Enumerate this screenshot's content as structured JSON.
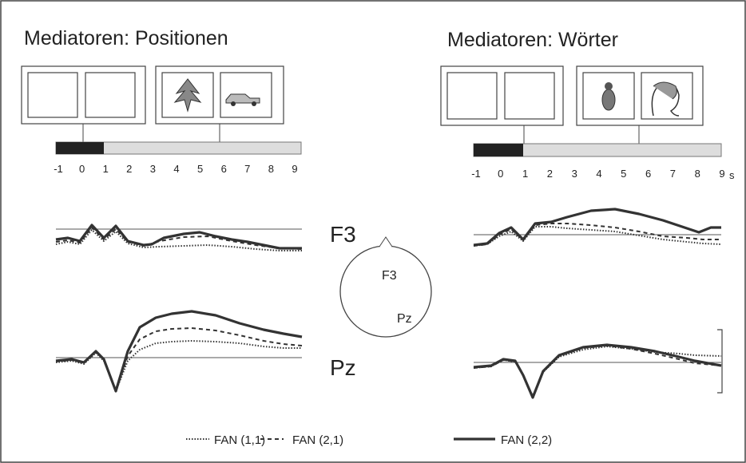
{
  "panels": [
    {
      "title": "Mediatoren: Positionen",
      "timeline_labels": [
        -1,
        0,
        1,
        2,
        3,
        4,
        5,
        6,
        7,
        8,
        9
      ]
    },
    {
      "title": "Mediatoren: Wörter",
      "timeline_labels": [
        -1,
        0,
        1,
        2,
        3,
        4,
        5,
        6,
        7,
        8,
        9
      ],
      "unit": "s"
    }
  ],
  "electrodes": [
    "F3",
    "Pz"
  ],
  "head_labels": [
    "F3",
    "Pz"
  ],
  "legend": [
    "FAN (1,1)",
    "FAN (2,1)",
    "FAN (2,2)"
  ]
}
